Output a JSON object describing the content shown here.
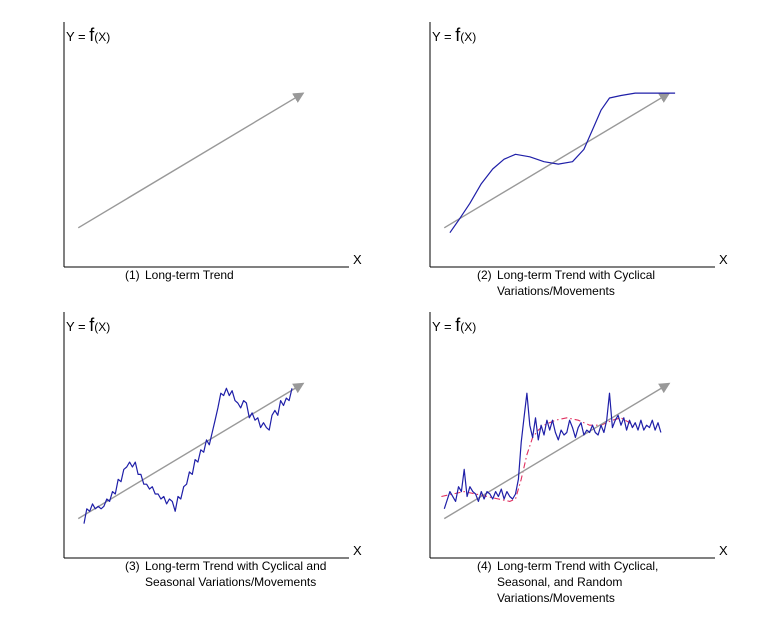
{
  "colors": {
    "background": "#ffffff",
    "axis": "#000000",
    "trend": "#999999",
    "series": "#1f1fa8",
    "cycle": "#e03060"
  },
  "chart_data": [
    {
      "type": "line",
      "ylabel_prefix": "Y = ",
      "ylabel_f": "f",
      "ylabel_suffix": "(X)",
      "xlabel": "X",
      "caption_num": "(1)",
      "caption_lines": [
        "Long-term Trend"
      ],
      "xlim": [
        0,
        100
      ],
      "ylim": [
        0,
        100
      ],
      "trend": [
        [
          5,
          16
        ],
        [
          84,
          71
        ]
      ],
      "series": [],
      "cycle": []
    },
    {
      "type": "line",
      "ylabel_prefix": "Y = ",
      "ylabel_f": "f",
      "ylabel_suffix": "(X)",
      "xlabel": "X",
      "caption_num": "(2)",
      "caption_lines": [
        "Long-term Trend with Cyclical",
        "Variations/Movements"
      ],
      "xlim": [
        0,
        100
      ],
      "ylim": [
        0,
        100
      ],
      "trend": [
        [
          5,
          16
        ],
        [
          84,
          71
        ]
      ],
      "series": [
        [
          7,
          14
        ],
        [
          10,
          19
        ],
        [
          14,
          26
        ],
        [
          18,
          34
        ],
        [
          22,
          40
        ],
        [
          26,
          44
        ],
        [
          30,
          46
        ],
        [
          35,
          45
        ],
        [
          40,
          43
        ],
        [
          45,
          42
        ],
        [
          50,
          43
        ],
        [
          54,
          48
        ],
        [
          57,
          56
        ],
        [
          60,
          64
        ],
        [
          63,
          69
        ],
        [
          67,
          70
        ],
        [
          72,
          71
        ],
        [
          78,
          71
        ],
        [
          86,
          71
        ]
      ],
      "cycle": []
    },
    {
      "type": "line",
      "ylabel_prefix": "Y = ",
      "ylabel_f": "f",
      "ylabel_suffix": "(X)",
      "xlabel": "X",
      "caption_num": "(3)",
      "caption_lines": [
        "Long-term Trend with Cyclical and",
        "Seasonal Variations/Movements"
      ],
      "xlim": [
        0,
        100
      ],
      "ylim": [
        0,
        100
      ],
      "trend": [
        [
          5,
          16
        ],
        [
          84,
          71
        ]
      ],
      "series": [
        [
          7,
          14
        ],
        [
          8,
          20
        ],
        [
          9,
          19
        ],
        [
          10,
          22
        ],
        [
          11,
          20
        ],
        [
          12,
          21
        ],
        [
          13,
          20
        ],
        [
          14,
          21
        ],
        [
          15,
          24
        ],
        [
          16,
          23
        ],
        [
          17,
          27
        ],
        [
          18,
          26
        ],
        [
          19,
          32
        ],
        [
          20,
          31
        ],
        [
          21,
          36
        ],
        [
          22,
          37
        ],
        [
          23,
          39
        ],
        [
          24,
          37
        ],
        [
          25,
          39
        ],
        [
          26,
          34
        ],
        [
          27,
          34
        ],
        [
          28,
          30
        ],
        [
          29,
          30
        ],
        [
          30,
          28
        ],
        [
          31,
          29
        ],
        [
          32,
          26
        ],
        [
          33,
          26
        ],
        [
          34,
          24
        ],
        [
          35,
          25
        ],
        [
          36,
          22
        ],
        [
          37,
          24
        ],
        [
          38,
          23
        ],
        [
          39,
          19
        ],
        [
          40,
          25
        ],
        [
          41,
          24
        ],
        [
          42,
          29
        ],
        [
          43,
          30
        ],
        [
          44,
          35
        ],
        [
          45,
          34
        ],
        [
          46,
          40
        ],
        [
          47,
          39
        ],
        [
          48,
          44
        ],
        [
          49,
          43
        ],
        [
          50,
          48
        ],
        [
          51,
          46
        ],
        [
          52,
          51
        ],
        [
          53,
          56
        ],
        [
          54,
          61
        ],
        [
          55,
          67
        ],
        [
          56,
          66
        ],
        [
          57,
          69
        ],
        [
          58,
          66
        ],
        [
          59,
          68
        ],
        [
          60,
          64
        ],
        [
          61,
          63
        ],
        [
          62,
          61
        ],
        [
          63,
          64
        ],
        [
          64,
          63
        ],
        [
          65,
          57
        ],
        [
          66,
          59
        ],
        [
          67,
          56
        ],
        [
          68,
          57
        ],
        [
          69,
          53
        ],
        [
          70,
          55
        ],
        [
          71,
          53
        ],
        [
          72,
          52
        ],
        [
          73,
          58
        ],
        [
          74,
          60
        ],
        [
          75,
          58
        ],
        [
          76,
          64
        ],
        [
          77,
          62
        ],
        [
          78,
          65
        ],
        [
          79,
          64
        ],
        [
          80,
          69
        ]
      ],
      "cycle": []
    },
    {
      "type": "line",
      "ylabel_prefix": "Y = ",
      "ylabel_f": "f",
      "ylabel_suffix": "(X)",
      "xlabel": "X",
      "caption_num": "(4)",
      "caption_lines": [
        "Long-term Trend with Cyclical,",
        "Seasonal, and Random",
        "Variations/Movements"
      ],
      "xlim": [
        0,
        100
      ],
      "ylim": [
        0,
        100
      ],
      "trend": [
        [
          5,
          16
        ],
        [
          84,
          71
        ]
      ],
      "series": [
        [
          5,
          20
        ],
        [
          7,
          27
        ],
        [
          9,
          23
        ],
        [
          10,
          29
        ],
        [
          11,
          27
        ],
        [
          12,
          36
        ],
        [
          13,
          25
        ],
        [
          14,
          29
        ],
        [
          15,
          27
        ],
        [
          16,
          26
        ],
        [
          17,
          23
        ],
        [
          18,
          27
        ],
        [
          19,
          24
        ],
        [
          20,
          27
        ],
        [
          21,
          26
        ],
        [
          22,
          24
        ],
        [
          23,
          27
        ],
        [
          24,
          25
        ],
        [
          25,
          28
        ],
        [
          26,
          24
        ],
        [
          27,
          27
        ],
        [
          28,
          25
        ],
        [
          29,
          24
        ],
        [
          30,
          26
        ],
        [
          31,
          32
        ],
        [
          32,
          47
        ],
        [
          33,
          57
        ],
        [
          34,
          67
        ],
        [
          35,
          54
        ],
        [
          36,
          49
        ],
        [
          37,
          57
        ],
        [
          38,
          48
        ],
        [
          39,
          54
        ],
        [
          40,
          50
        ],
        [
          41,
          56
        ],
        [
          42,
          52
        ],
        [
          43,
          56
        ],
        [
          44,
          51
        ],
        [
          45,
          48
        ],
        [
          46,
          52
        ],
        [
          47,
          50
        ],
        [
          48,
          51
        ],
        [
          49,
          56
        ],
        [
          50,
          53
        ],
        [
          51,
          49
        ],
        [
          52,
          53
        ],
        [
          53,
          55
        ],
        [
          54,
          50
        ],
        [
          55,
          52
        ],
        [
          56,
          51
        ],
        [
          57,
          54
        ],
        [
          58,
          51
        ],
        [
          59,
          50
        ],
        [
          60,
          54
        ],
        [
          61,
          51
        ],
        [
          62,
          56
        ],
        [
          63,
          67
        ],
        [
          64,
          53
        ],
        [
          65,
          56
        ],
        [
          66,
          58
        ],
        [
          67,
          54
        ],
        [
          68,
          57
        ],
        [
          69,
          52
        ],
        [
          70,
          56
        ],
        [
          71,
          53
        ],
        [
          72,
          55
        ],
        [
          73,
          52
        ],
        [
          74,
          56
        ],
        [
          75,
          52
        ],
        [
          76,
          54
        ],
        [
          77,
          53
        ],
        [
          78,
          56
        ],
        [
          79,
          52
        ],
        [
          80,
          55
        ],
        [
          81,
          51
        ]
      ],
      "cycle": [
        [
          4,
          25
        ],
        [
          8,
          26
        ],
        [
          12,
          27
        ],
        [
          16,
          26
        ],
        [
          20,
          25
        ],
        [
          24,
          24
        ],
        [
          28,
          23
        ],
        [
          30,
          24
        ],
        [
          32,
          32
        ],
        [
          34,
          42
        ],
        [
          36,
          49
        ],
        [
          38,
          52
        ],
        [
          40,
          54
        ],
        [
          44,
          56
        ],
        [
          48,
          57
        ],
        [
          52,
          56
        ],
        [
          56,
          54
        ],
        [
          60,
          54
        ],
        [
          64,
          56
        ],
        [
          67,
          57
        ],
        [
          70,
          55
        ],
        [
          72,
          53
        ]
      ]
    }
  ]
}
